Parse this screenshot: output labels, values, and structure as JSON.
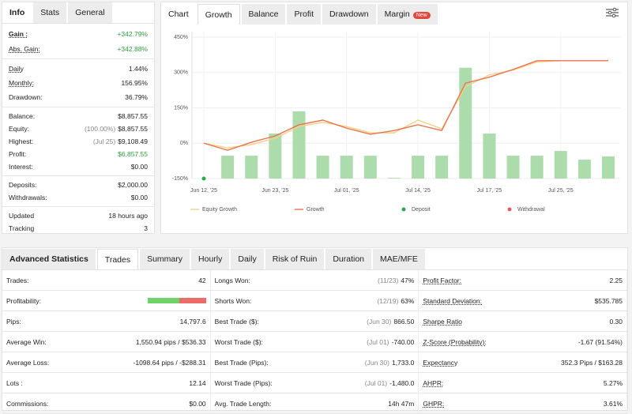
{
  "left_panel": {
    "tabs": [
      "Info",
      "Stats",
      "General"
    ],
    "groups": [
      [
        {
          "label": "Gain :",
          "value": "+342.79%"
        },
        {
          "label": "Abs. Gain:",
          "value": "+342.88%"
        }
      ],
      [
        {
          "label": "Daily",
          "value": "1.44%"
        },
        {
          "label": "Monthly:",
          "value": "156.95%"
        },
        {
          "label": "Drawdown:",
          "value": "36.79%"
        }
      ],
      [
        {
          "label": "Balance:",
          "value": "$8,857.55"
        },
        {
          "label": "Equity:",
          "note": "(100.00%)",
          "value": "$8,857.55"
        },
        {
          "label": "Highest:",
          "note": "(Jul 25)",
          "value": "$9,108.49"
        },
        {
          "label": "Profit:",
          "value": "$6,857.55"
        },
        {
          "label": "Interest:",
          "value": "$0.00"
        }
      ],
      [
        {
          "label": "Deposits:",
          "value": "$2,000.00"
        },
        {
          "label": "Withdrawals:",
          "value": "$0.00"
        }
      ],
      [
        {
          "label": "Updated",
          "value": "18 hours ago"
        },
        {
          "label": "Tracking",
          "value": "3"
        }
      ]
    ]
  },
  "chart_panel": {
    "tabs": [
      "Chart",
      "Growth",
      "Balance",
      "Profit",
      "Drawdown",
      "Margin"
    ],
    "badge": "New"
  },
  "chart_data": {
    "type": "line",
    "x": [
      0,
      1,
      2,
      3,
      4,
      5,
      6,
      7,
      8,
      9,
      10,
      11,
      12,
      13,
      14,
      15,
      16,
      17
    ],
    "xlim": [
      0,
      17
    ],
    "xticks": [
      {
        "value": 0,
        "label": "Jun 12, '25"
      },
      {
        "value": 3,
        "label": "Jun 23, '25"
      },
      {
        "value": 6,
        "label": "Jul 01, '25"
      },
      {
        "value": 9,
        "label": "Jul 14, '25"
      },
      {
        "value": 12,
        "label": "Jul 17, '25"
      },
      {
        "value": 15,
        "label": "Jul 25, '25"
      }
    ],
    "ylim": [
      -150,
      450
    ],
    "yticks": [
      {
        "value": 450,
        "label": "450%"
      },
      {
        "value": 300,
        "label": "300%"
      },
      {
        "value": 150,
        "label": "150%"
      },
      {
        "value": 0,
        "label": "0%"
      },
      {
        "value": -150,
        "label": "-150%"
      }
    ],
    "grid": true,
    "bars": {
      "color": "#acdcac",
      "values": [
        null,
        -53,
        -53,
        41,
        135,
        -53,
        -53,
        -53,
        -147,
        -53,
        -53,
        320,
        41,
        -53,
        -53,
        -33,
        -70,
        -56
      ]
    },
    "series": [
      {
        "name": "Equity Growth",
        "color": "#f6cf88",
        "values": [
          0,
          -20,
          -6,
          21,
          71,
          88,
          71,
          44,
          44,
          98,
          61,
          240,
          290,
          310,
          345,
          350,
          350,
          350
        ]
      },
      {
        "name": "Growth",
        "color": "#e9754d",
        "values": [
          0,
          -30,
          4,
          31,
          78,
          98,
          64,
          38,
          54,
          78,
          54,
          255,
          280,
          313,
          350,
          350,
          350,
          350
        ]
      }
    ],
    "markers": [
      {
        "name": "Deposit",
        "color": "#2ea84a",
        "x": [
          0
        ],
        "values": [
          -150
        ]
      },
      {
        "name": "Withdrawal",
        "color": "#e35d5d",
        "x": [],
        "values": []
      }
    ]
  },
  "stats_panel": {
    "tabs": [
      "Advanced Statistics",
      "Trades",
      "Summary",
      "Hourly",
      "Daily",
      "Risk of Ruin",
      "Duration",
      "MAE/MFE"
    ],
    "rows": [
      [
        {
          "label": "Trades:",
          "value": "42"
        },
        {
          "label": "Longs Won:",
          "note": "(11/23)",
          "value": "47%"
        },
        {
          "label": "Profit Factor:",
          "value": "2.25"
        }
      ],
      [
        {
          "label": "Profitability:",
          "bar": {
            "won": 55,
            "lost": 45
          }
        },
        {
          "label": "Shorts Won:",
          "note": "(12/19)",
          "value": "63%"
        },
        {
          "label": "Standard Deviation:",
          "value": "$535.785"
        }
      ],
      [
        {
          "label": "Pips:",
          "value": "14,797.6"
        },
        {
          "label": "Best Trade ($):",
          "note": "(Jun 30)",
          "value": "866.50"
        },
        {
          "label": "Sharpe Ratio",
          "value": "0.30"
        }
      ],
      [
        {
          "label": "Average Win:",
          "value": "1,550.94 pips / $536.33"
        },
        {
          "label": "Worst Trade ($):",
          "note": "(Jul 01)",
          "value": "-740.00"
        },
        {
          "label": "Z-Score (Probability):",
          "value": "-1.67 (91.54%)"
        }
      ],
      [
        {
          "label": "Average Loss:",
          "value": "-1098.64 pips / -$288.31"
        },
        {
          "label": "Best Trade (Pips):",
          "note": "(Jun 30)",
          "value": "1,733.0"
        },
        {
          "label": "Expectancy",
          "value": "352.3 Pips / $163.28"
        }
      ],
      [
        {
          "label": "Lots :",
          "value": "12.14"
        },
        {
          "label": "Worst Trade (Pips):",
          "note": "(Jul 01)",
          "value": "-1,480.0"
        },
        {
          "label": "AHPR:",
          "value": "5.27%"
        }
      ],
      [
        {
          "label": "Commissions:",
          "value": "$0.00"
        },
        {
          "label": "Avg. Trade Length:",
          "value": "14h 47m"
        },
        {
          "label": "GHPR:",
          "value": "3.61%"
        }
      ]
    ]
  }
}
